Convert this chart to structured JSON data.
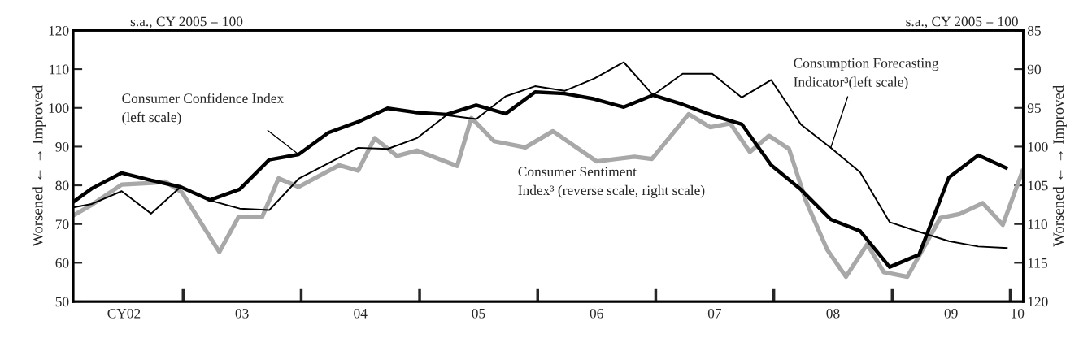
{
  "chart_data": {
    "type": "line",
    "annotations": [
      "s.a., CY 2005 = 100",
      "s.a., CY 2005 = 100"
    ],
    "ylabel": "Worsened ← → Improved",
    "y2label": "Worsened ← → Improved",
    "xlim": [
      "2002-01-26",
      "2010-02-10"
    ],
    "xticks": [
      {
        "value": "2003-01-01",
        "label": null
      },
      {
        "value": "2004-01-01",
        "label": null
      },
      {
        "value": "2005-01-01",
        "label": null
      },
      {
        "value": "2006-01-01",
        "label": null
      },
      {
        "value": "2007-01-01",
        "label": null
      },
      {
        "value": "2008-01-01",
        "label": null
      },
      {
        "value": "2009-01-01",
        "label": null
      },
      {
        "value": "2010-01-01",
        "label": null
      },
      {
        "value": "2002-07-02",
        "label": "CY02"
      },
      {
        "value": "2003-07-02",
        "label": "03"
      },
      {
        "value": "2004-07-02",
        "label": "04"
      },
      {
        "value": "2005-07-02",
        "label": "05"
      },
      {
        "value": "2006-07-02",
        "label": "06"
      },
      {
        "value": "2007-07-02",
        "label": "07"
      },
      {
        "value": "2008-07-02",
        "label": "08"
      },
      {
        "value": "2009-07-02",
        "label": "09"
      },
      {
        "value": "2010-01-23",
        "label": "10"
      }
    ],
    "ylim": [
      50,
      120
    ],
    "yticks": [
      50,
      60,
      70,
      80,
      90,
      100,
      110,
      120
    ],
    "y2lim": [
      120,
      85
    ],
    "y2ticks": [
      85,
      90,
      95,
      100,
      105,
      110,
      115,
      120
    ],
    "grid": false,
    "legend": false,
    "series": [
      {
        "name": "Consumer Confidence Index\n(left scale)",
        "color": "#000000",
        "axis": "y",
        "x": [
          "2002-01-26",
          "2002-03-25",
          "2002-06-25",
          "2002-09-24",
          "2002-12-24",
          "2003-03-25",
          "2003-06-25",
          "2003-09-24",
          "2003-12-24",
          "2004-03-25",
          "2004-06-25",
          "2004-09-24",
          "2004-12-24",
          "2005-03-25",
          "2005-06-25",
          "2005-09-24",
          "2005-12-24",
          "2006-03-25",
          "2006-06-25",
          "2006-09-24",
          "2006-12-24",
          "2007-03-25",
          "2007-06-25",
          "2007-09-24",
          "2007-12-24",
          "2008-03-25",
          "2008-06-25",
          "2008-09-24",
          "2008-12-24",
          "2009-03-25",
          "2009-06-25",
          "2009-09-24",
          "2009-12-24"
        ],
        "values": [
          75.7,
          79.2,
          83.2,
          81.3,
          79.6,
          76.2,
          79.0,
          86.6,
          88.0,
          93.6,
          96.4,
          99.9,
          98.8,
          98.3,
          100.7,
          98.5,
          104.1,
          103.7,
          102.3,
          100.2,
          103.3,
          100.9,
          98.1,
          95.8,
          85.2,
          78.9,
          71.2,
          68.2,
          58.9,
          62.1,
          82.0,
          87.8,
          84.3
        ]
      },
      {
        "name": "Consumption Forecasting\nIndicator³(left scale)",
        "color": "#000000",
        "axis": "y",
        "x": [
          "2002-01-26",
          "2002-03-25",
          "2002-06-25",
          "2002-09-24",
          "2002-12-24",
          "2003-03-25",
          "2003-06-25",
          "2003-09-24",
          "2003-12-24",
          "2004-03-25",
          "2004-06-25",
          "2004-09-24",
          "2004-12-24",
          "2005-03-25",
          "2005-06-25",
          "2005-09-24",
          "2005-12-24",
          "2006-03-25",
          "2006-06-25",
          "2006-09-24",
          "2006-12-24",
          "2007-03-25",
          "2007-06-25",
          "2007-09-24",
          "2007-12-24",
          "2008-03-25",
          "2008-06-25",
          "2008-09-24",
          "2008-12-24",
          "2009-03-25",
          "2009-06-25",
          "2009-09-24",
          "2009-12-24"
        ],
        "values": [
          74.3,
          75.2,
          78.5,
          72.7,
          79.6,
          76.1,
          74.0,
          73.6,
          81.7,
          85.7,
          89.7,
          89.4,
          92.2,
          98.1,
          97.1,
          103.0,
          105.6,
          104.4,
          107.6,
          111.8,
          103.3,
          108.8,
          108.8,
          102.7,
          107.2,
          95.7,
          89.7,
          83.4,
          70.5,
          68.0,
          65.6,
          64.2,
          63.8
        ]
      },
      {
        "name": "Consumer Sentiment\nIndex³ (reverse scale, right scale)",
        "color": "#a8a8a8",
        "axis": "y2",
        "x": [
          "2002-01-26",
          "2002-03-25",
          "2002-06-25",
          "2002-09-27",
          "2002-11-06",
          "2002-12-28",
          "2003-04-23",
          "2003-06-21",
          "2003-09-02",
          "2003-10-23",
          "2003-12-24",
          "2004-04-27",
          "2004-06-25",
          "2004-08-15",
          "2004-10-23",
          "2004-12-24",
          "2005-04-27",
          "2005-06-10",
          "2005-08-19",
          "2005-11-24",
          "2006-02-17",
          "2006-07-02",
          "2006-10-27",
          "2006-12-20",
          "2007-04-13",
          "2007-06-18",
          "2007-08-19",
          "2007-10-19",
          "2007-12-17",
          "2008-02-17",
          "2008-04-09",
          "2008-06-14",
          "2008-08-11",
          "2008-10-16",
          "2008-12-06",
          "2009-02-17",
          "2009-05-30",
          "2009-07-28",
          "2009-10-08",
          "2009-12-09",
          "2010-02-10"
        ],
        "values": [
          108.9,
          107.5,
          104.9,
          104.7,
          104.5,
          105.9,
          113.6,
          109.1,
          109.1,
          104.1,
          105.2,
          102.4,
          103.1,
          98.9,
          101.2,
          100.5,
          102.5,
          96.3,
          99.3,
          100.1,
          98.0,
          101.9,
          101.3,
          101.6,
          95.8,
          97.5,
          97.0,
          100.7,
          98.6,
          100.3,
          107.0,
          113.3,
          116.8,
          112.6,
          116.2,
          116.8,
          109.2,
          108.7,
          107.3,
          110.1,
          102.9
        ]
      }
    ]
  }
}
